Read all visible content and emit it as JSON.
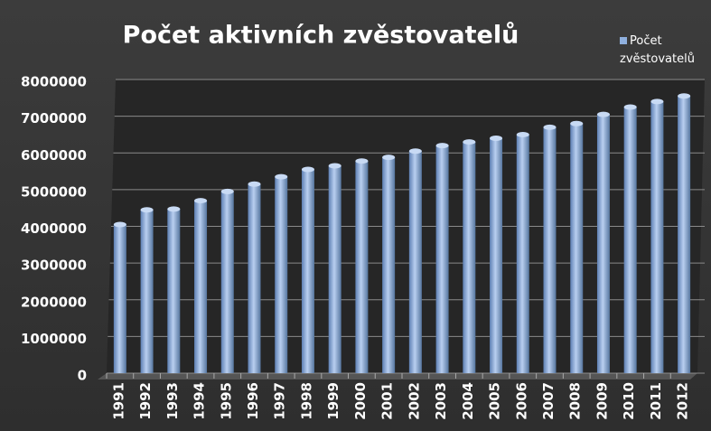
{
  "chart_data": {
    "type": "bar",
    "title": "Počet  aktivních zvěstovatelů",
    "categories": [
      "1991",
      "1992",
      "1993",
      "1994",
      "1995",
      "1996",
      "1997",
      "1998",
      "1999",
      "2000",
      "2001",
      "2002",
      "2003",
      "2004",
      "2005",
      "2006",
      "2007",
      "2008",
      "2009",
      "2010",
      "2011",
      "2012"
    ],
    "series": [
      {
        "name": "Počet zvěstovatelů",
        "color": "#8fb0de",
        "values": [
          4050000,
          4450000,
          4470000,
          4700000,
          4950000,
          5150000,
          5350000,
          5550000,
          5650000,
          5780000,
          5880000,
          6050000,
          6200000,
          6300000,
          6400000,
          6500000,
          6700000,
          6800000,
          7050000,
          7250000,
          7400000,
          7550000
        ]
      }
    ],
    "ylim": [
      0,
      8000000
    ],
    "yticks": [
      0,
      1000000,
      2000000,
      3000000,
      4000000,
      5000000,
      6000000,
      7000000,
      8000000
    ],
    "grid": true,
    "legend": "top-right"
  }
}
